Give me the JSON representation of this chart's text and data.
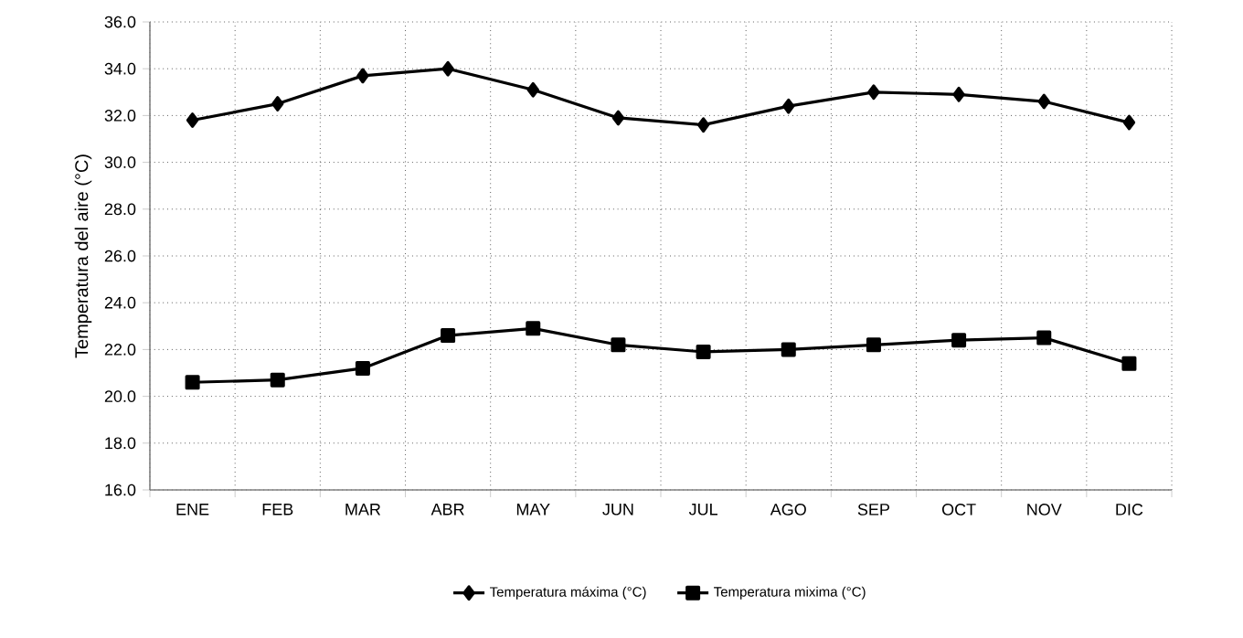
{
  "chart_data": {
    "type": "line",
    "ylabel": "Temperatura del aire (°C)",
    "categories": [
      "ENE",
      "FEB",
      "MAR",
      "ABR",
      "MAY",
      "JUN",
      "JUL",
      "AGO",
      "SEP",
      "OCT",
      "NOV",
      "DIC"
    ],
    "series": [
      {
        "name": "Temperatura máxima (°C)",
        "color": "#000000",
        "marker": "diamond",
        "values": [
          31.8,
          32.5,
          33.7,
          34.0,
          33.1,
          31.9,
          31.6,
          32.4,
          33.0,
          32.9,
          32.6,
          31.7
        ]
      },
      {
        "name": "Temperatura mixima (°C)",
        "color": "#000000",
        "marker": "square",
        "values": [
          20.6,
          20.7,
          21.2,
          22.6,
          22.9,
          22.2,
          21.9,
          22.0,
          22.2,
          22.4,
          22.5,
          21.4
        ]
      }
    ],
    "ylim": [
      16,
      36
    ],
    "yticks": [
      {
        "value": 16,
        "label": "16.0"
      },
      {
        "value": 18,
        "label": "18.0"
      },
      {
        "value": 20,
        "label": "20.0"
      },
      {
        "value": 22,
        "label": "22.0"
      },
      {
        "value": 24,
        "label": "24.0"
      },
      {
        "value": 26,
        "label": "26.0"
      },
      {
        "value": 28,
        "label": "28.0"
      },
      {
        "value": 30,
        "label": "30.0"
      },
      {
        "value": 32,
        "label": "32.0"
      },
      {
        "value": 34,
        "label": "34.0"
      },
      {
        "value": 36,
        "label": "36.0"
      }
    ],
    "grid": true,
    "legend": "bottom",
    "line_style": "solid"
  }
}
